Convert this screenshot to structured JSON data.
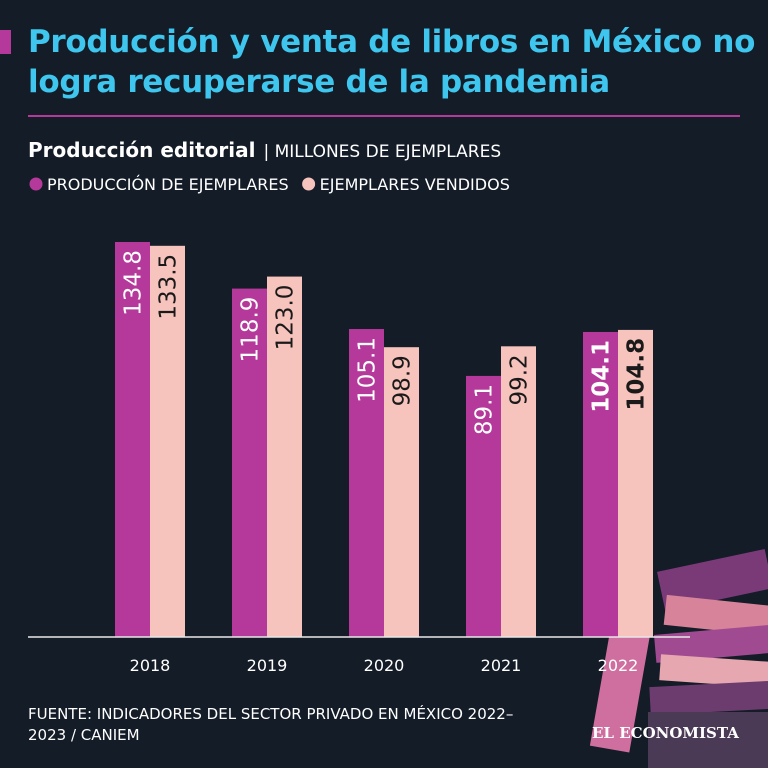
{
  "chart_data": {
    "type": "bar",
    "title": "Producción y venta de libros en México no logra recuperarse de la pandemia",
    "subtitle": "Producción editorial",
    "unit": "| MILLONES DE EJEMPLARES",
    "categories": [
      "2018",
      "2019",
      "2020",
      "2021",
      "2022"
    ],
    "series": [
      {
        "name": "PRODUCCIÓN DE EJEMPLARES",
        "color": "#b5399a",
        "values": [
          134.8,
          118.9,
          105.1,
          89.1,
          104.1
        ]
      },
      {
        "name": "EJEMPLARES VENDIDOS",
        "color": "#f7c3bd",
        "values": [
          133.5,
          123.0,
          98.9,
          99.2,
          104.8
        ],
        "value_labels": [
          "133.5",
          "123.0",
          "98.9",
          "99.2",
          "104.8"
        ]
      }
    ],
    "source": "FUENTE: INDICADORES DEL SECTOR PRIVADO EN MÉXICO 2022–2023 / CANIEM",
    "brand": "EL ECONOMISTA"
  }
}
